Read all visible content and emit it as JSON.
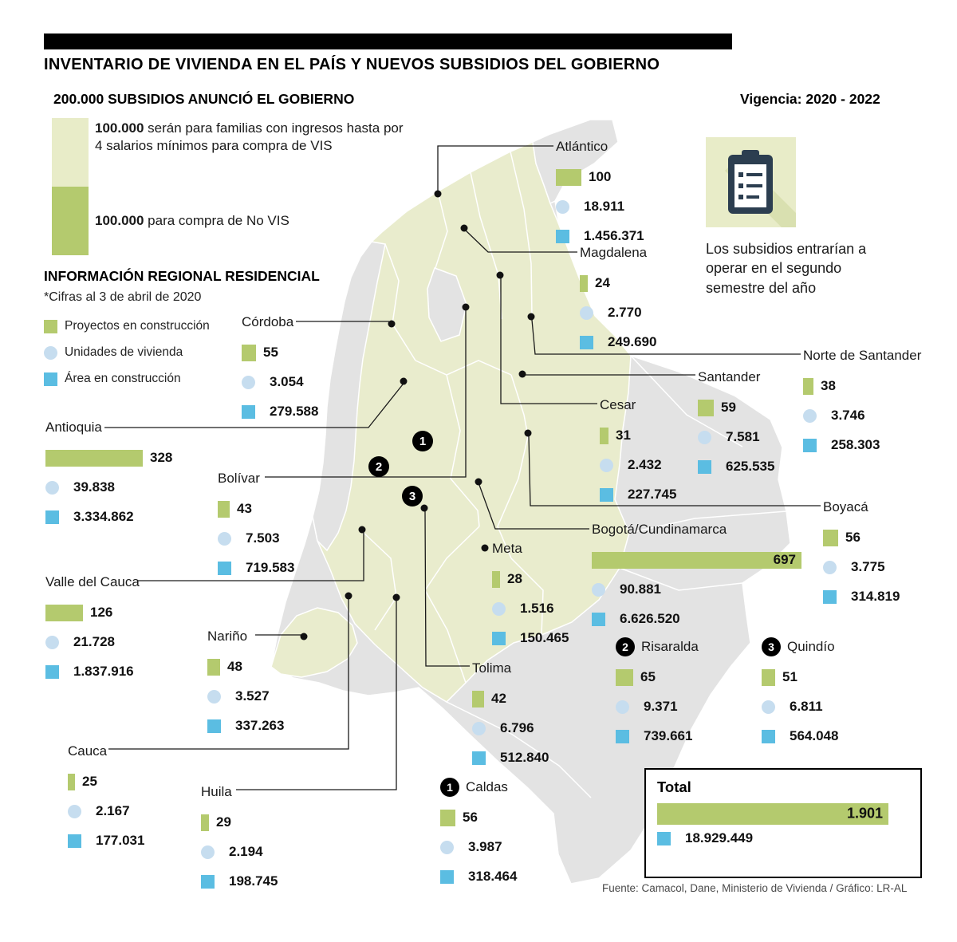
{
  "header": {
    "title": "INVENTARIO DE VIVIENDA EN EL PAÍS Y NUEVOS SUBSIDIOS DEL GOBIERNO",
    "vigencia": "Vigencia: 2020 - 2022"
  },
  "subsidies": {
    "heading": "200.000 SUBSIDIOS ANUNCIÓ EL GOBIERNO",
    "vis": {
      "amount": "100.000",
      "text": " serán para familias con ingresos hasta por 4 salarios mínimos para compra de VIS"
    },
    "no_vis": {
      "amount": "100.000",
      "text": " para compra de No VIS"
    }
  },
  "regional": {
    "title": "INFORMACIÓN REGIONAL RESIDENCIAL",
    "note": "*Cifras al 3 de abril de 2020",
    "legend": {
      "proyectos": "Proyectos en construcción",
      "unidades": "Unidades de vivienda",
      "area": "Área en construcción"
    }
  },
  "subsidy_note": "Los subsidios entrarían a operar en el segundo semestre del año",
  "departments": [
    {
      "name": "Atlántico",
      "proyectos": "100",
      "unidades": "18.911",
      "area": "1.456.371"
    },
    {
      "name": "Magdalena",
      "proyectos": "24",
      "unidades": "2.770",
      "area": "249.690"
    },
    {
      "name": "Córdoba",
      "proyectos": "55",
      "unidades": "3.054",
      "area": "279.588"
    },
    {
      "name": "Norte de Santander",
      "proyectos": "38",
      "unidades": "3.746",
      "area": "258.303"
    },
    {
      "name": "Santander",
      "proyectos": "59",
      "unidades": "7.581",
      "area": "625.535"
    },
    {
      "name": "Cesar",
      "proyectos": "31",
      "unidades": "2.432",
      "area": "227.745"
    },
    {
      "name": "Antioquia",
      "proyectos": "328",
      "unidades": "39.838",
      "area": "3.334.862"
    },
    {
      "name": "Bolívar",
      "proyectos": "43",
      "unidades": "7.503",
      "area": "719.583"
    },
    {
      "name": "Boyacá",
      "proyectos": "56",
      "unidades": "3.775",
      "area": "314.819"
    },
    {
      "name": "Bogotá/Cundinamarca",
      "proyectos": "697",
      "unidades": "90.881",
      "area": "6.626.520"
    },
    {
      "name": "Meta",
      "proyectos": "28",
      "unidades": "1.516",
      "area": "150.465"
    },
    {
      "name": "Valle del Cauca",
      "proyectos": "126",
      "unidades": "21.728",
      "area": "1.837.916"
    },
    {
      "name": "Nariño",
      "proyectos": "48",
      "unidades": "3.527",
      "area": "337.263"
    },
    {
      "name": "Tolima",
      "proyectos": "42",
      "unidades": "6.796",
      "area": "512.840"
    },
    {
      "name": "Risaralda",
      "badge": "2",
      "proyectos": "65",
      "unidades": "9.371",
      "area": "739.661"
    },
    {
      "name": "Quindío",
      "badge": "3",
      "proyectos": "51",
      "unidades": "6.811",
      "area": "564.048"
    },
    {
      "name": "Cauca",
      "proyectos": "25",
      "unidades": "2.167",
      "area": "177.031"
    },
    {
      "name": "Huila",
      "proyectos": "29",
      "unidades": "2.194",
      "area": "198.745"
    },
    {
      "name": "Caldas",
      "badge": "1",
      "proyectos": "56",
      "unidades": "3.987",
      "area": "318.464"
    }
  ],
  "total": {
    "label": "Total",
    "proyectos": "1.901",
    "area": "18.929.449"
  },
  "footer": "Fuente: Camacol, Dane, Ministerio de Vivienda / Gráfico: LR-AL",
  "colors": {
    "green": "#b4ca6e",
    "green_pale": "#e8ecc8",
    "map_green": "#e9eccd",
    "map_gray": "#e3e3e3",
    "blue_light": "#c6ddef",
    "blue": "#5bbde2"
  },
  "chart_data": {
    "type": "table",
    "title": "INVENTARIO DE VIVIENDA EN EL PAÍS Y NUEVOS SUBSIDIOS DEL GOBIERNO",
    "subtitle": "200.000 SUBSIDIOS ANUNCIÓ EL GOBIERNO — Vigencia: 2020 - 2022",
    "note": "*Cifras al 3 de abril de 2020",
    "categories": [
      "Atlántico",
      "Magdalena",
      "Córdoba",
      "Norte de Santander",
      "Santander",
      "Cesar",
      "Antioquia",
      "Bolívar",
      "Boyacá",
      "Bogotá/Cundinamarca",
      "Meta",
      "Valle del Cauca",
      "Nariño",
      "Tolima",
      "Risaralda",
      "Quindío",
      "Cauca",
      "Huila",
      "Caldas"
    ],
    "series": [
      {
        "name": "Proyectos en construcción",
        "values": [
          100,
          24,
          55,
          38,
          59,
          31,
          328,
          43,
          56,
          697,
          28,
          126,
          48,
          42,
          65,
          51,
          25,
          29,
          56
        ]
      },
      {
        "name": "Unidades de vivienda",
        "values": [
          18911,
          2770,
          3054,
          3746,
          7581,
          2432,
          39838,
          7503,
          3775,
          90881,
          1516,
          21728,
          3527,
          6796,
          9371,
          6811,
          2167,
          2194,
          3987
        ]
      },
      {
        "name": "Área en construcción",
        "values": [
          1456371,
          249690,
          279588,
          258303,
          625535,
          227745,
          3334862,
          719583,
          314819,
          6626520,
          150465,
          1837916,
          337263,
          512840,
          739661,
          564048,
          177031,
          198745,
          318464
        ]
      }
    ],
    "total": {
      "proyectos_en_construccion": 1901,
      "area_en_construccion": 18929449
    },
    "subsidios": {
      "total": 200000,
      "vis": 100000,
      "no_vis": 100000
    }
  }
}
